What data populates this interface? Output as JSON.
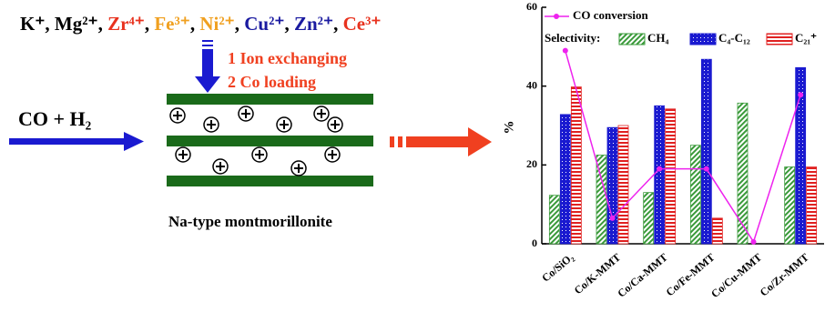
{
  "diagram": {
    "ions": [
      {
        "text": "K⁺",
        "color": "#000000"
      },
      {
        "text": "Mg²⁺",
        "color": "#000000"
      },
      {
        "text": "Zr⁴⁺",
        "color": "#e8321e"
      },
      {
        "text": "Fe³⁺",
        "color": "#f0a020"
      },
      {
        "text": "Ni²⁺",
        "color": "#f0a020"
      },
      {
        "text": "Cu²⁺",
        "color": "#1a1aa0"
      },
      {
        "text": "Zn²⁺",
        "color": "#1a1aa0"
      },
      {
        "text": "Ce³⁺",
        "color": "#e8321e"
      }
    ],
    "separator": ",",
    "feed": "CO + H₂",
    "steps": [
      "1 Ion exchanging",
      "2 Co loading"
    ],
    "support": "Na-type montmorillonite"
  },
  "chart_data": {
    "type": "bar",
    "y_label": "%",
    "categories": [
      "Co/SiO₂",
      "Co/K-MMT",
      "Co/Ca-MMT",
      "Co/Fe-MMT",
      "Co/Cu-MMT",
      "Co/Zr-MMT"
    ],
    "legend_group_label": "Selectivity:",
    "series": [
      {
        "name": "CO conversion",
        "type": "line",
        "color": "#ee22ee",
        "values": [
          49,
          6.5,
          19,
          19,
          0.5,
          37.8
        ]
      },
      {
        "name": "CH₄",
        "color": "#3a9a3a",
        "values": [
          12.3,
          22.5,
          13,
          25,
          35.7,
          19.5
        ]
      },
      {
        "name": "C₄-C₁₂",
        "color": "#1a1ad0",
        "values": [
          32.8,
          29.5,
          35,
          46.8,
          0,
          44.7
        ]
      },
      {
        "name": "C₂₁⁺",
        "color": "#e02020",
        "values": [
          39.8,
          30,
          34.2,
          6.5,
          0,
          19.5
        ]
      }
    ],
    "ylim": [
      0,
      60
    ],
    "yticks": [
      0,
      20,
      40,
      60
    ]
  }
}
